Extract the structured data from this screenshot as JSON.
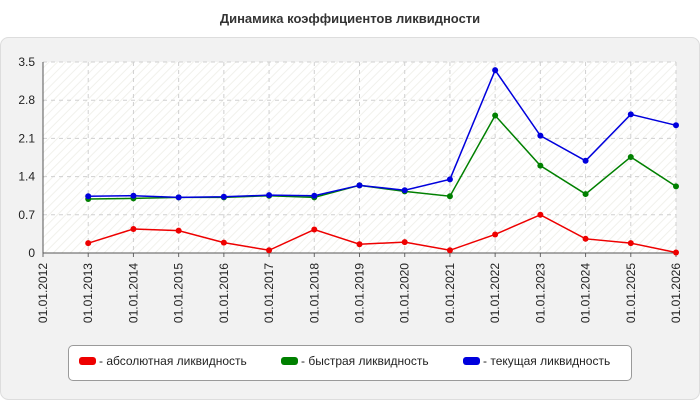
{
  "chart_data": {
    "type": "line",
    "title": "Динамика коэффициентов ликвидности",
    "xlabel": "",
    "ylabel": "",
    "x": [
      "01.01.2012",
      "01.01.2013",
      "01.01.2014",
      "01.01.2015",
      "01.01.2016",
      "01.01.2017",
      "01.01.2018",
      "01.01.2019",
      "01.01.2020",
      "01.01.2021",
      "01.01.2022",
      "01.01.2023",
      "01.01.2024",
      "01.01.2025",
      "01.01.2026"
    ],
    "ylim": [
      0,
      3.5
    ],
    "yticks": [
      "0",
      "0.7",
      "1.4",
      "2.1",
      "2.8",
      "3.5"
    ],
    "grid": true,
    "legend_position": "bottom",
    "series": [
      {
        "name": "- абсолютная ликвидность",
        "color": "#ee0000",
        "values": [
          null,
          0.18,
          0.44,
          0.41,
          0.19,
          0.05,
          0.43,
          0.16,
          0.2,
          0.05,
          0.34,
          0.7,
          0.26,
          0.18,
          0.01
        ]
      },
      {
        "name": "- быстрая ликвидность",
        "color": "#008000",
        "values": [
          null,
          0.99,
          1.0,
          1.02,
          1.02,
          1.05,
          1.02,
          1.24,
          1.13,
          1.04,
          2.52,
          1.6,
          1.08,
          1.76,
          1.22
        ]
      },
      {
        "name": "- текущая ликвидность",
        "color": "#0000dd",
        "values": [
          null,
          1.04,
          1.05,
          1.02,
          1.03,
          1.06,
          1.05,
          1.24,
          1.15,
          1.35,
          3.35,
          2.15,
          1.69,
          2.54,
          2.34
        ]
      }
    ]
  }
}
